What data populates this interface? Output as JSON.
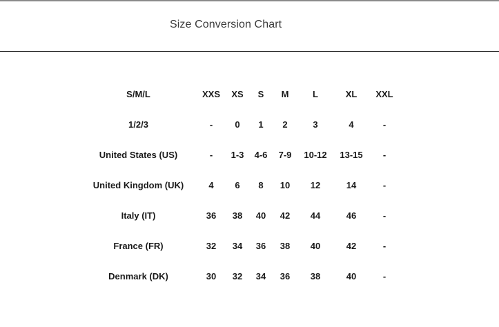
{
  "modal": {
    "title": "Size Conversion Chart"
  },
  "table": {
    "columns": [
      "S/M/L",
      "XXS",
      "XS",
      "S",
      "M",
      "L",
      "XL",
      "XXL"
    ],
    "rows": [
      [
        "1/2/3",
        "-",
        "0",
        "1",
        "2",
        "3",
        "4",
        "-"
      ],
      [
        "United States (US)",
        "-",
        "1-3",
        "4-6",
        "7-9",
        "10-12",
        "13-15",
        "-"
      ],
      [
        "United Kingdom (UK)",
        "4",
        "6",
        "8",
        "10",
        "12",
        "14",
        "-"
      ],
      [
        "Italy (IT)",
        "36",
        "38",
        "40",
        "42",
        "44",
        "46",
        "-"
      ],
      [
        "France (FR)",
        "32",
        "34",
        "36",
        "38",
        "40",
        "42",
        "-"
      ],
      [
        "Denmark (DK)",
        "30",
        "32",
        "34",
        "36",
        "38",
        "40",
        "-"
      ]
    ]
  }
}
